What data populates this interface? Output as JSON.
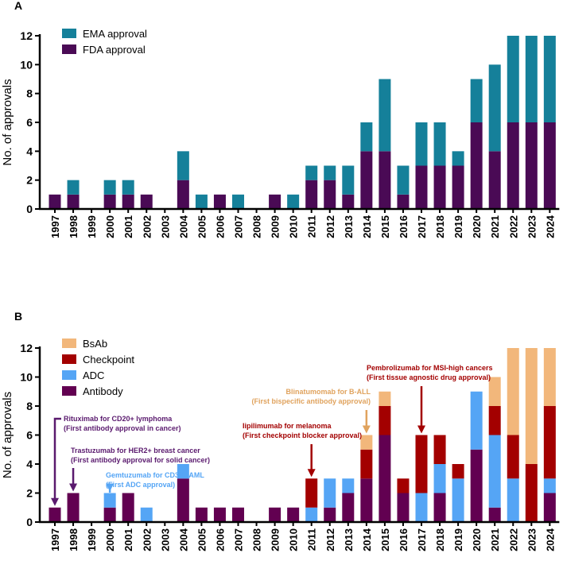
{
  "chart_data": [
    {
      "panel": "A",
      "type": "bar",
      "stacked": true,
      "ylabel": "No. of approvals",
      "ylim": [
        0,
        12
      ],
      "yticks": [
        0,
        2,
        4,
        6,
        8,
        10,
        12
      ],
      "legend_position": "top-left",
      "categories": [
        "1997",
        "1998",
        "1999",
        "2000",
        "2001",
        "2002",
        "2003",
        "2004",
        "2005",
        "2006",
        "2007",
        "2008",
        "2009",
        "2010",
        "2011",
        "2012",
        "2013",
        "2014",
        "2015",
        "2016",
        "2017",
        "2018",
        "2019",
        "2020",
        "2021",
        "2022",
        "2023",
        "2024"
      ],
      "series": [
        {
          "name": "FDA approval",
          "color": "#4a0a55",
          "values": [
            1,
            1,
            0,
            1,
            1,
            1,
            0,
            2,
            0,
            1,
            0,
            0,
            1,
            0,
            2,
            2,
            1,
            4,
            4,
            1,
            3,
            3,
            3,
            6,
            4,
            6,
            6,
            6
          ]
        },
        {
          "name": "EMA approval",
          "color": "#15809a",
          "values": [
            0,
            1,
            0,
            1,
            1,
            0,
            0,
            2,
            1,
            0,
            1,
            0,
            0,
            1,
            1,
            1,
            2,
            2,
            5,
            2,
            3,
            3,
            1,
            3,
            6,
            6,
            6,
            6
          ]
        }
      ]
    },
    {
      "panel": "B",
      "type": "bar",
      "stacked": true,
      "ylabel": "No. of approvals",
      "ylim": [
        0,
        12
      ],
      "yticks": [
        0,
        2,
        4,
        6,
        8,
        10,
        12
      ],
      "legend_position": "top-left",
      "categories": [
        "1997",
        "1998",
        "1999",
        "2000",
        "2001",
        "2002",
        "2003",
        "2004",
        "2005",
        "2006",
        "2007",
        "2008",
        "2009",
        "2010",
        "2011",
        "2012",
        "2013",
        "2014",
        "2015",
        "2016",
        "2017",
        "2018",
        "2019",
        "2020",
        "2021",
        "2022",
        "2023",
        "2024"
      ],
      "series": [
        {
          "name": "Antibody",
          "color": "#620051",
          "values": [
            1,
            2,
            0,
            1,
            2,
            0,
            0,
            3,
            1,
            1,
            1,
            0,
            1,
            1,
            0,
            1,
            2,
            3,
            6,
            2,
            0,
            2,
            0,
            5,
            1,
            0,
            0,
            2
          ]
        },
        {
          "name": "ADC",
          "color": "#55a5f5",
          "values": [
            0,
            0,
            0,
            1,
            0,
            1,
            0,
            1,
            0,
            0,
            0,
            0,
            0,
            0,
            1,
            2,
            1,
            0,
            0,
            0,
            2,
            2,
            3,
            4,
            5,
            3,
            0,
            1
          ]
        },
        {
          "name": "Checkpoint",
          "color": "#a30000",
          "values": [
            0,
            0,
            0,
            0,
            0,
            0,
            0,
            0,
            0,
            0,
            0,
            0,
            0,
            0,
            2,
            0,
            0,
            2,
            2,
            1,
            4,
            2,
            1,
            0,
            2,
            3,
            4,
            5
          ]
        },
        {
          "name": "BsAb",
          "color": "#f2b77b",
          "values": [
            0,
            0,
            0,
            0,
            0,
            0,
            0,
            0,
            0,
            0,
            0,
            0,
            0,
            0,
            0,
            0,
            0,
            1,
            1,
            0,
            0,
            0,
            0,
            0,
            2,
            6,
            8,
            4
          ]
        }
      ],
      "annotations": [
        {
          "year": "1997",
          "line1": "Rituximab for CD20+ lymphoma",
          "line2": "(First antibody approval in cancer)",
          "color": "#5a1a6e"
        },
        {
          "year": "1998",
          "line1": "Trastuzumab for HER2+ breast cancer",
          "line2": "(First antibody approval for solid cancer)",
          "color": "#5a1a6e"
        },
        {
          "year": "2000",
          "line1": "Gemtuzumab for CD33+ AML",
          "line2": "(First ADC approval)",
          "color": "#55a5f5"
        },
        {
          "year": "2011",
          "line1": "Iipilimumab for melanoma",
          "line2": "(First checkpoint blocker approval)",
          "color": "#a30000"
        },
        {
          "year": "2014",
          "line1": "Blinatumomab for B-ALL",
          "line2": "(First bispecific antibody approval)",
          "color": "#e0a35e"
        },
        {
          "year": "2017",
          "line1": "Pembrolizumab for MSI-high cancers",
          "line2": "(First tissue agnostic drug approval)",
          "color": "#a30000"
        }
      ]
    }
  ],
  "panel_labels": [
    "A",
    "B"
  ]
}
